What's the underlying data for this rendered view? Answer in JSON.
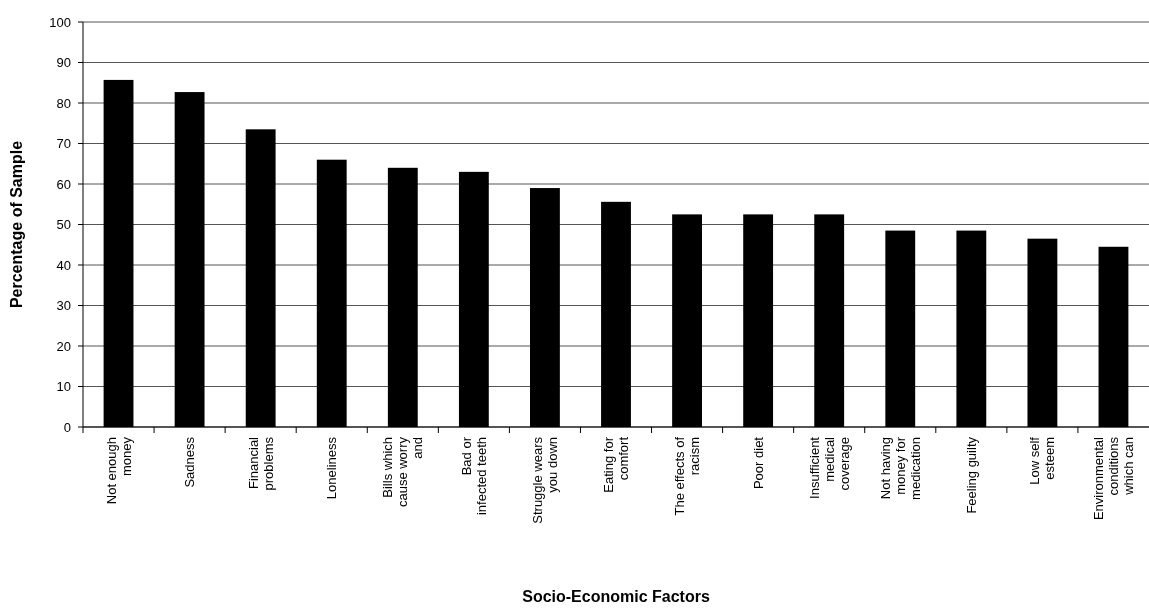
{
  "chart_data": {
    "type": "bar",
    "xlabel": "Socio-Economic Factors",
    "ylabel": "Percentage of Sample",
    "categories": [
      "Not enough money",
      "Sadness",
      "Financial problems",
      "Loneliness",
      "Bills which cause worry and",
      "Bad or infected teeth",
      "Struggle wears you down",
      "Eating for comfort",
      "The effects of racism",
      "Poor diet",
      "Insufficient medical coverage",
      "Not having money for medication",
      "Feeling guilty",
      "Low self esteem",
      "Environmental conditions which can"
    ],
    "values": [
      85.7,
      82.7,
      73.5,
      66,
      64,
      63,
      59,
      55.6,
      52.5,
      52.5,
      52.5,
      48.5,
      48.5,
      46.5,
      44.5
    ],
    "color": "#000000",
    "ylim": [
      0,
      100
    ],
    "yticks": [
      0,
      10,
      20,
      30,
      40,
      50,
      60,
      70,
      80,
      90,
      100
    ],
    "grid": "y"
  }
}
